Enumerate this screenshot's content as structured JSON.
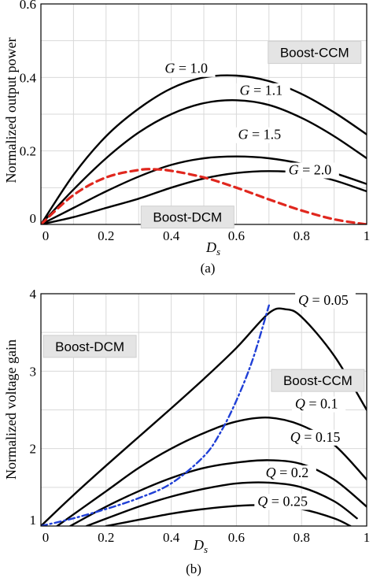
{
  "chart_data": [
    {
      "type": "line",
      "panel_label": "(a)",
      "xlabel": "Ds",
      "xlabel_base": "D",
      "xlabel_sub": "s",
      "ylabel": "Normalized output power",
      "xlim": [
        0,
        1
      ],
      "ylim": [
        0,
        0.6
      ],
      "x_ticks": [
        "0",
        "0.2",
        "0.4",
        "0.6",
        "0.8",
        "1"
      ],
      "y_ticks": [
        "0",
        "0.2",
        "0.4",
        "0.6"
      ],
      "grid": true,
      "region_labels": [
        {
          "text": "Boost-CCM",
          "x": 0.84,
          "y": 0.468
        },
        {
          "text": "Boost-DCM",
          "x": 0.45,
          "y": 0.02
        }
      ],
      "series": [
        {
          "label": "G = 1.0",
          "label_x": 0.38,
          "label_y": 0.412,
          "color": "#000000",
          "style": "solid",
          "x": [
            0,
            0.1,
            0.2,
            0.3,
            0.4,
            0.5,
            0.6,
            0.7,
            0.8,
            0.9,
            1.0
          ],
          "y": [
            0,
            0.135,
            0.24,
            0.315,
            0.37,
            0.4,
            0.405,
            0.39,
            0.355,
            0.305,
            0.245
          ]
        },
        {
          "label": "G = 1.1",
          "label_x": 0.61,
          "label_y": 0.352,
          "color": "#000000",
          "style": "solid",
          "x": [
            0,
            0.1,
            0.2,
            0.3,
            0.4,
            0.5,
            0.6,
            0.7,
            0.8,
            0.9,
            1.0
          ],
          "y": [
            0,
            0.095,
            0.18,
            0.25,
            0.3,
            0.33,
            0.338,
            0.325,
            0.29,
            0.24,
            0.18
          ]
        },
        {
          "label": "G = 1.5",
          "label_x": 0.605,
          "label_y": 0.232,
          "color": "#000000",
          "style": "solid",
          "x": [
            0,
            0.1,
            0.2,
            0.3,
            0.4,
            0.5,
            0.6,
            0.7,
            0.8,
            0.9,
            1.0
          ],
          "y": [
            0,
            0.045,
            0.09,
            0.13,
            0.162,
            0.18,
            0.185,
            0.18,
            0.165,
            0.14,
            0.11
          ]
        },
        {
          "label": "G = 2.0",
          "label_x": 0.76,
          "label_y": 0.136,
          "color": "#000000",
          "style": "solid",
          "x": [
            0,
            0.1,
            0.2,
            0.3,
            0.4,
            0.5,
            0.6,
            0.7,
            0.8,
            0.9,
            1.0
          ],
          "y": [
            0,
            0.02,
            0.045,
            0.07,
            0.1,
            0.125,
            0.14,
            0.145,
            0.14,
            0.12,
            0.09
          ]
        },
        {
          "label": "",
          "color": "#e0271e",
          "style": "dashed",
          "x": [
            0,
            0.1,
            0.2,
            0.3,
            0.35,
            0.4,
            0.5,
            0.6,
            0.7,
            0.8,
            0.9,
            1.0
          ],
          "y": [
            0,
            0.08,
            0.128,
            0.148,
            0.15,
            0.146,
            0.128,
            0.1,
            0.068,
            0.038,
            0.014,
            0
          ]
        }
      ]
    },
    {
      "type": "line",
      "panel_label": "(b)",
      "xlabel": "Ds",
      "xlabel_base": "D",
      "xlabel_sub": "s",
      "ylabel": "Normalized voltage gain",
      "xlim": [
        0,
        1
      ],
      "ylim": [
        1,
        4
      ],
      "x_ticks": [
        "0",
        "0.2",
        "0.4",
        "0.6",
        "0.8",
        "1"
      ],
      "y_ticks": [
        "1",
        "2",
        "3",
        "4"
      ],
      "grid": true,
      "region_labels": [
        {
          "text": "Boost-DCM",
          "x": 0.15,
          "y": 3.32
        },
        {
          "text": "Boost-CCM",
          "x": 0.85,
          "y": 2.88
        }
      ],
      "series": [
        {
          "label": "Q = 0.05",
          "label_x": 0.79,
          "label_y": 3.86,
          "color": "#000000",
          "style": "solid",
          "x": [
            0,
            0.1,
            0.2,
            0.3,
            0.4,
            0.5,
            0.6,
            0.7,
            0.75,
            0.8,
            0.9,
            1.0
          ],
          "y": [
            1,
            1.4,
            1.78,
            2.15,
            2.52,
            2.9,
            3.3,
            3.75,
            3.8,
            3.7,
            3.2,
            2.5
          ]
        },
        {
          "label": "Q = 0.1",
          "label_x": 0.78,
          "label_y": 2.52,
          "color": "#000000",
          "style": "solid",
          "x": [
            0.05,
            0.2,
            0.3,
            0.4,
            0.5,
            0.6,
            0.7,
            0.8,
            0.9,
            1.0
          ],
          "y": [
            1,
            1.45,
            1.75,
            2.0,
            2.2,
            2.35,
            2.4,
            2.3,
            2.05,
            1.6
          ]
        },
        {
          "label": "Q = 0.15",
          "label_x": 0.765,
          "label_y": 2.09,
          "color": "#000000",
          "style": "solid",
          "x": [
            0.09,
            0.2,
            0.3,
            0.4,
            0.5,
            0.6,
            0.7,
            0.8,
            0.9,
            1.0
          ],
          "y": [
            1,
            1.25,
            1.45,
            1.62,
            1.75,
            1.82,
            1.85,
            1.8,
            1.6,
            1.25
          ]
        },
        {
          "label": "Q = 0.2",
          "label_x": 0.69,
          "label_y": 1.63,
          "color": "#000000",
          "style": "solid",
          "x": [
            0.14,
            0.3,
            0.4,
            0.5,
            0.6,
            0.7,
            0.8,
            0.9,
            0.97
          ],
          "y": [
            1,
            1.25,
            1.38,
            1.48,
            1.55,
            1.56,
            1.5,
            1.32,
            1.1
          ]
        },
        {
          "label": "Q = 0.25",
          "label_x": 0.665,
          "label_y": 1.26,
          "color": "#000000",
          "style": "solid",
          "x": [
            0.2,
            0.3,
            0.4,
            0.5,
            0.6,
            0.7,
            0.8,
            0.9,
            0.95
          ],
          "y": [
            1,
            1.08,
            1.16,
            1.22,
            1.26,
            1.27,
            1.22,
            1.1,
            1.0
          ]
        },
        {
          "label": "",
          "color": "#1f3fd6",
          "style": "dashdot",
          "x": [
            0,
            0.1,
            0.2,
            0.3,
            0.4,
            0.5,
            0.55,
            0.6,
            0.65,
            0.7
          ],
          "y": [
            1,
            1.1,
            1.22,
            1.36,
            1.55,
            1.9,
            2.2,
            2.62,
            3.15,
            3.85
          ]
        }
      ]
    }
  ]
}
